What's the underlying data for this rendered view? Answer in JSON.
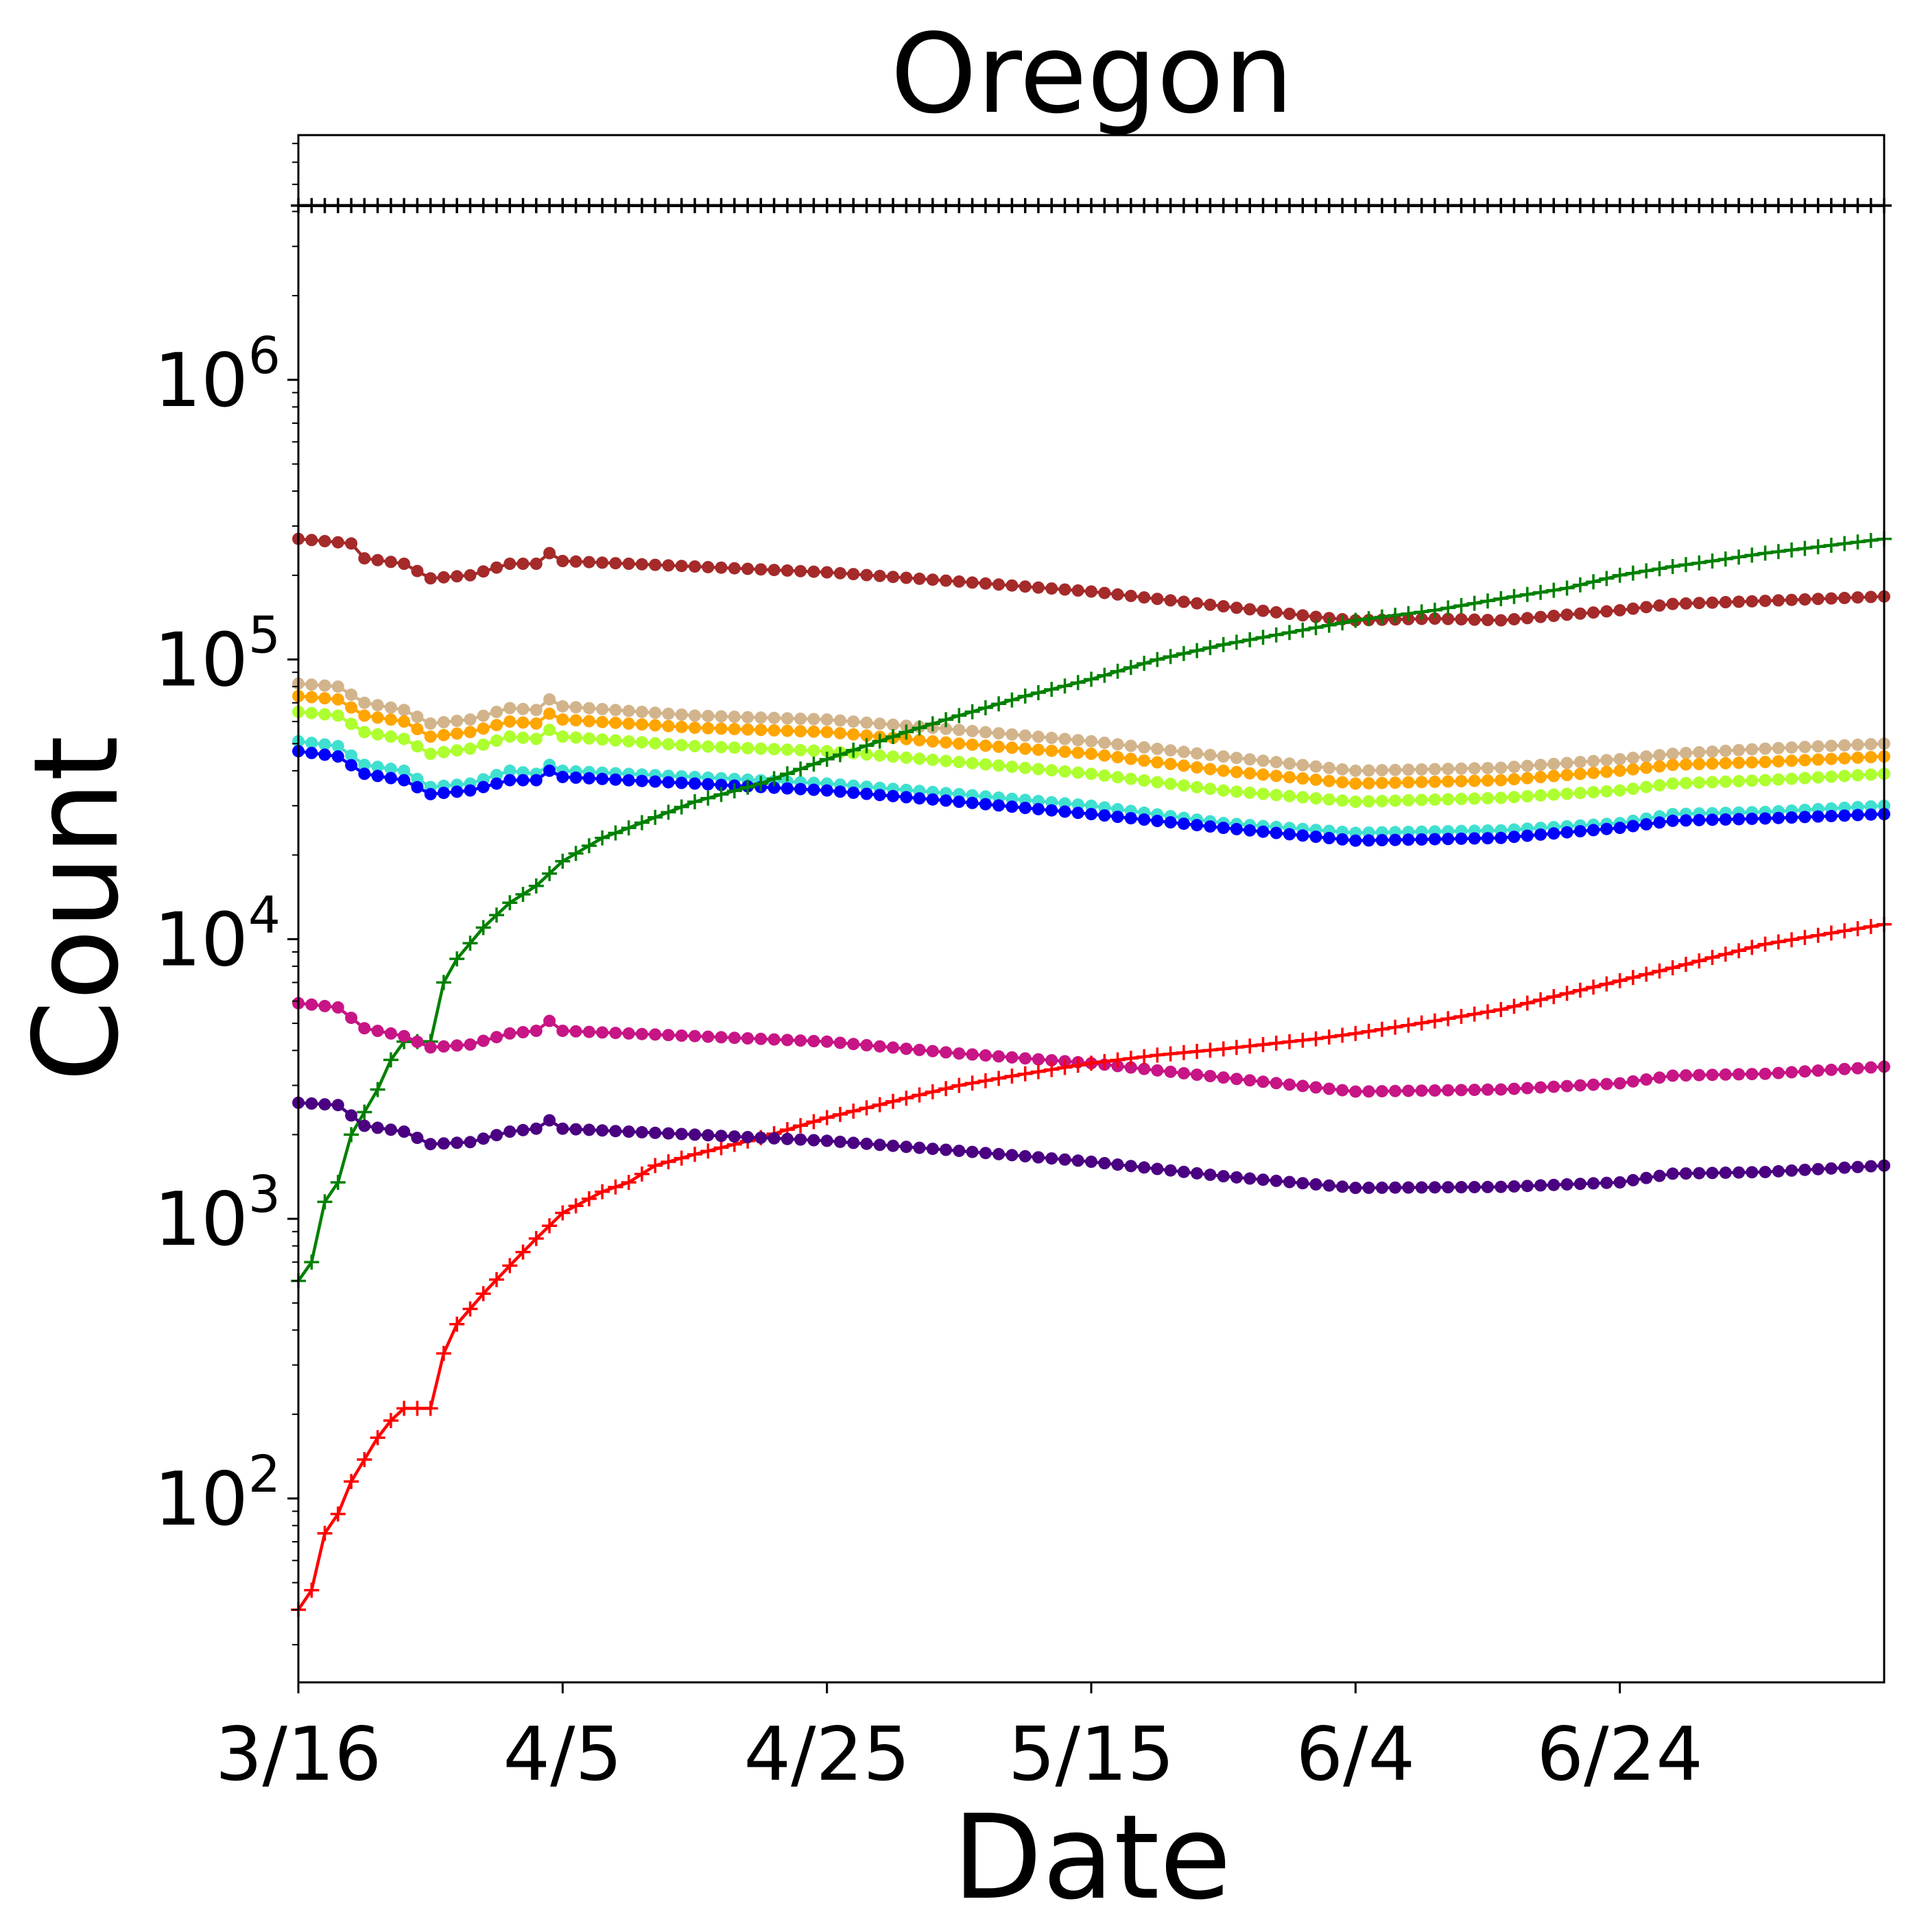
{
  "chart_data": {
    "type": "line",
    "title": "Oregon",
    "xlabel": "Date",
    "ylabel": "Count",
    "y_scale": "log",
    "ylim": [
      22,
      7500000
    ],
    "x_start": "3/16",
    "x_end": "7/14",
    "x_ticks": [
      "3/16",
      "4/5",
      "4/25",
      "5/15",
      "6/4",
      "6/24"
    ],
    "y_ticks": [
      {
        "value": 100,
        "base": "10",
        "exp": "2"
      },
      {
        "value": 1000,
        "base": "10",
        "exp": "3"
      },
      {
        "value": 10000,
        "base": "10",
        "exp": "4"
      },
      {
        "value": 100000,
        "base": "10",
        "exp": "5"
      },
      {
        "value": 1000000,
        "base": "10",
        "exp": "6"
      }
    ],
    "legend": "none",
    "grid": false,
    "series": [
      {
        "color": "#000000",
        "marker": "plus",
        "points": [
          [
            "3/16",
            4200000
          ],
          [
            "7/14",
            4200000
          ]
        ]
      },
      {
        "color": "#a52a2a",
        "marker": "dot",
        "points": [
          [
            "3/16",
            270000
          ],
          [
            "3/20",
            260000
          ],
          [
            "3/21",
            230000
          ],
          [
            "3/24",
            220000
          ],
          [
            "3/26",
            195000
          ],
          [
            "3/29",
            200000
          ],
          [
            "4/1",
            220000
          ],
          [
            "4/3",
            220000
          ],
          [
            "4/4",
            240000
          ],
          [
            "4/5",
            225000
          ],
          [
            "4/15",
            215000
          ],
          [
            "4/25",
            205000
          ],
          [
            "5/5",
            190000
          ],
          [
            "5/15",
            175000
          ],
          [
            "5/25",
            155000
          ],
          [
            "6/1",
            142000
          ],
          [
            "6/4",
            138000
          ],
          [
            "6/10",
            140000
          ],
          [
            "6/15",
            138000
          ],
          [
            "6/24",
            150000
          ],
          [
            "6/28",
            158000
          ],
          [
            "7/5",
            162000
          ],
          [
            "7/14",
            168000
          ]
        ]
      },
      {
        "color": "#d2b48c",
        "marker": "dot",
        "points": [
          [
            "3/16",
            82000
          ],
          [
            "3/19",
            80000
          ],
          [
            "3/21",
            70000
          ],
          [
            "3/24",
            66000
          ],
          [
            "3/26",
            59000
          ],
          [
            "3/29",
            61000
          ],
          [
            "4/1",
            67000
          ],
          [
            "4/3",
            66000
          ],
          [
            "4/4",
            72000
          ],
          [
            "4/5",
            68000
          ],
          [
            "4/15",
            63000
          ],
          [
            "4/25",
            61000
          ],
          [
            "5/5",
            56000
          ],
          [
            "5/15",
            51000
          ],
          [
            "5/25",
            45000
          ],
          [
            "6/4",
            40000
          ],
          [
            "6/15",
            41000
          ],
          [
            "6/24",
            44000
          ],
          [
            "6/28",
            46000
          ],
          [
            "7/5",
            48000
          ],
          [
            "7/14",
            50000
          ]
        ]
      },
      {
        "color": "#ffa500",
        "marker": "dot",
        "points": [
          [
            "3/16",
            74000
          ],
          [
            "3/19",
            72000
          ],
          [
            "3/21",
            63000
          ],
          [
            "3/24",
            60000
          ],
          [
            "3/26",
            53000
          ],
          [
            "3/29",
            55000
          ],
          [
            "4/1",
            60000
          ],
          [
            "4/3",
            59000
          ],
          [
            "4/4",
            64000
          ],
          [
            "4/5",
            61000
          ],
          [
            "4/15",
            57000
          ],
          [
            "4/25",
            55000
          ],
          [
            "5/5",
            50000
          ],
          [
            "5/15",
            46000
          ],
          [
            "5/25",
            40000
          ],
          [
            "6/4",
            36000
          ],
          [
            "6/15",
            37000
          ],
          [
            "6/24",
            40000
          ],
          [
            "6/28",
            42000
          ],
          [
            "7/5",
            43000
          ],
          [
            "7/14",
            45000
          ]
        ]
      },
      {
        "color": "#adff2f",
        "marker": "dot",
        "points": [
          [
            "3/16",
            65000
          ],
          [
            "3/19",
            63000
          ],
          [
            "3/21",
            55000
          ],
          [
            "3/24",
            52000
          ],
          [
            "3/26",
            46000
          ],
          [
            "3/29",
            48000
          ],
          [
            "4/1",
            53000
          ],
          [
            "4/3",
            52000
          ],
          [
            "4/4",
            56000
          ],
          [
            "4/5",
            53000
          ],
          [
            "4/15",
            49000
          ],
          [
            "4/25",
            47000
          ],
          [
            "5/5",
            43000
          ],
          [
            "5/15",
            39000
          ],
          [
            "5/25",
            34000
          ],
          [
            "6/4",
            31000
          ],
          [
            "6/15",
            32000
          ],
          [
            "6/24",
            34000
          ],
          [
            "6/28",
            36000
          ],
          [
            "7/5",
            37000
          ],
          [
            "7/14",
            39000
          ]
        ]
      },
      {
        "color": "#40e0d0",
        "marker": "dot",
        "points": [
          [
            "3/16",
            51000
          ],
          [
            "3/19",
            49000
          ],
          [
            "3/21",
            42000
          ],
          [
            "3/24",
            40000
          ],
          [
            "3/26",
            35000
          ],
          [
            "3/29",
            36000
          ],
          [
            "4/1",
            40000
          ],
          [
            "4/3",
            39000
          ],
          [
            "4/4",
            42000
          ],
          [
            "4/5",
            40000
          ],
          [
            "4/15",
            38000
          ],
          [
            "4/25",
            36000
          ],
          [
            "5/5",
            33000
          ],
          [
            "5/15",
            30000
          ],
          [
            "5/25",
            26000
          ],
          [
            "6/4",
            24000
          ],
          [
            "6/15",
            24500
          ],
          [
            "6/24",
            26000
          ],
          [
            "6/28",
            28000
          ],
          [
            "7/5",
            28500
          ],
          [
            "7/14",
            30000
          ]
        ]
      },
      {
        "color": "#0000ff",
        "marker": "dot",
        "points": [
          [
            "3/16",
            47000
          ],
          [
            "3/19",
            45000
          ],
          [
            "3/21",
            39000
          ],
          [
            "3/24",
            37000
          ],
          [
            "3/26",
            33000
          ],
          [
            "3/29",
            34000
          ],
          [
            "4/1",
            37000
          ],
          [
            "4/3",
            37000
          ],
          [
            "4/4",
            40000
          ],
          [
            "4/5",
            38000
          ],
          [
            "4/15",
            36000
          ],
          [
            "4/25",
            34000
          ],
          [
            "5/5",
            31000
          ],
          [
            "5/15",
            28000
          ],
          [
            "5/25",
            25000
          ],
          [
            "6/4",
            22500
          ],
          [
            "6/15",
            23000
          ],
          [
            "6/24",
            25000
          ],
          [
            "6/28",
            26500
          ],
          [
            "7/5",
            27000
          ],
          [
            "7/14",
            28000
          ]
        ]
      },
      {
        "color": "#008000",
        "marker": "plus",
        "points": [
          [
            "3/16",
            600
          ],
          [
            "3/17",
            700
          ],
          [
            "3/18",
            1150
          ],
          [
            "3/19",
            1350
          ],
          [
            "3/20",
            2000
          ],
          [
            "3/22",
            2900
          ],
          [
            "3/23",
            3700
          ],
          [
            "3/24",
            4300
          ],
          [
            "3/26",
            4300
          ],
          [
            "3/27",
            7000
          ],
          [
            "3/28",
            8500
          ],
          [
            "3/30",
            11000
          ],
          [
            "4/1",
            13500
          ],
          [
            "4/3",
            15500
          ],
          [
            "4/5",
            19000
          ],
          [
            "4/8",
            23000
          ],
          [
            "4/10",
            25000
          ],
          [
            "4/15",
            31000
          ],
          [
            "4/20",
            36000
          ],
          [
            "4/25",
            44000
          ],
          [
            "5/1",
            55000
          ],
          [
            "5/5",
            63000
          ],
          [
            "5/10",
            74000
          ],
          [
            "5/15",
            85000
          ],
          [
            "5/20",
            100000
          ],
          [
            "5/25",
            113000
          ],
          [
            "6/1",
            130000
          ],
          [
            "6/4",
            138000
          ],
          [
            "6/10",
            150000
          ],
          [
            "6/15",
            165000
          ],
          [
            "6/20",
            180000
          ],
          [
            "6/24",
            200000
          ],
          [
            "6/28",
            215000
          ],
          [
            "7/1",
            225000
          ],
          [
            "7/5",
            240000
          ],
          [
            "7/14",
            270000
          ]
        ]
      },
      {
        "color": "#c71585",
        "marker": "dot",
        "points": [
          [
            "3/16",
            5900
          ],
          [
            "3/19",
            5700
          ],
          [
            "3/21",
            4800
          ],
          [
            "3/24",
            4500
          ],
          [
            "3/26",
            4100
          ],
          [
            "3/29",
            4200
          ],
          [
            "4/1",
            4600
          ],
          [
            "4/3",
            4700
          ],
          [
            "4/4",
            5100
          ],
          [
            "4/5",
            4700
          ],
          [
            "4/15",
            4500
          ],
          [
            "4/25",
            4300
          ],
          [
            "5/5",
            3900
          ],
          [
            "5/15",
            3600
          ],
          [
            "5/25",
            3200
          ],
          [
            "6/4",
            2850
          ],
          [
            "6/15",
            2900
          ],
          [
            "6/24",
            3050
          ],
          [
            "6/28",
            3250
          ],
          [
            "7/5",
            3300
          ],
          [
            "7/14",
            3500
          ]
        ]
      },
      {
        "color": "#ff0000",
        "marker": "plus",
        "points": [
          [
            "3/16",
            40
          ],
          [
            "3/17",
            47
          ],
          [
            "3/18",
            75
          ],
          [
            "3/19",
            88
          ],
          [
            "3/20",
            115
          ],
          [
            "3/22",
            165
          ],
          [
            "3/23",
            190
          ],
          [
            "3/24",
            210
          ],
          [
            "3/26",
            210
          ],
          [
            "3/27",
            330
          ],
          [
            "3/28",
            420
          ],
          [
            "3/30",
            540
          ],
          [
            "4/1",
            680
          ],
          [
            "4/3",
            850
          ],
          [
            "4/5",
            1050
          ],
          [
            "4/8",
            1250
          ],
          [
            "4/10",
            1350
          ],
          [
            "4/12",
            1550
          ],
          [
            "4/15",
            1700
          ],
          [
            "4/20",
            1950
          ],
          [
            "4/25",
            2300
          ],
          [
            "5/1",
            2700
          ],
          [
            "5/5",
            3000
          ],
          [
            "5/10",
            3300
          ],
          [
            "5/15",
            3600
          ],
          [
            "5/20",
            3850
          ],
          [
            "5/25",
            4050
          ],
          [
            "6/1",
            4400
          ],
          [
            "6/4",
            4600
          ],
          [
            "6/10",
            5100
          ],
          [
            "6/15",
            5600
          ],
          [
            "6/20",
            6400
          ],
          [
            "6/24",
            7100
          ],
          [
            "6/28",
            7900
          ],
          [
            "7/1",
            8600
          ],
          [
            "7/5",
            9600
          ],
          [
            "7/14",
            11300
          ]
        ]
      },
      {
        "color": "#4b0082",
        "marker": "dot",
        "points": [
          [
            "3/16",
            2600
          ],
          [
            "3/19",
            2550
          ],
          [
            "3/21",
            2150
          ],
          [
            "3/24",
            2050
          ],
          [
            "3/26",
            1850
          ],
          [
            "3/29",
            1880
          ],
          [
            "4/1",
            2050
          ],
          [
            "4/3",
            2100
          ],
          [
            "4/4",
            2250
          ],
          [
            "4/5",
            2100
          ],
          [
            "4/15",
            2000
          ],
          [
            "4/25",
            1900
          ],
          [
            "5/5",
            1750
          ],
          [
            "5/15",
            1600
          ],
          [
            "5/25",
            1420
          ],
          [
            "6/4",
            1290
          ],
          [
            "6/15",
            1300
          ],
          [
            "6/24",
            1350
          ],
          [
            "6/28",
            1450
          ],
          [
            "7/5",
            1470
          ],
          [
            "7/14",
            1550
          ]
        ]
      }
    ]
  }
}
